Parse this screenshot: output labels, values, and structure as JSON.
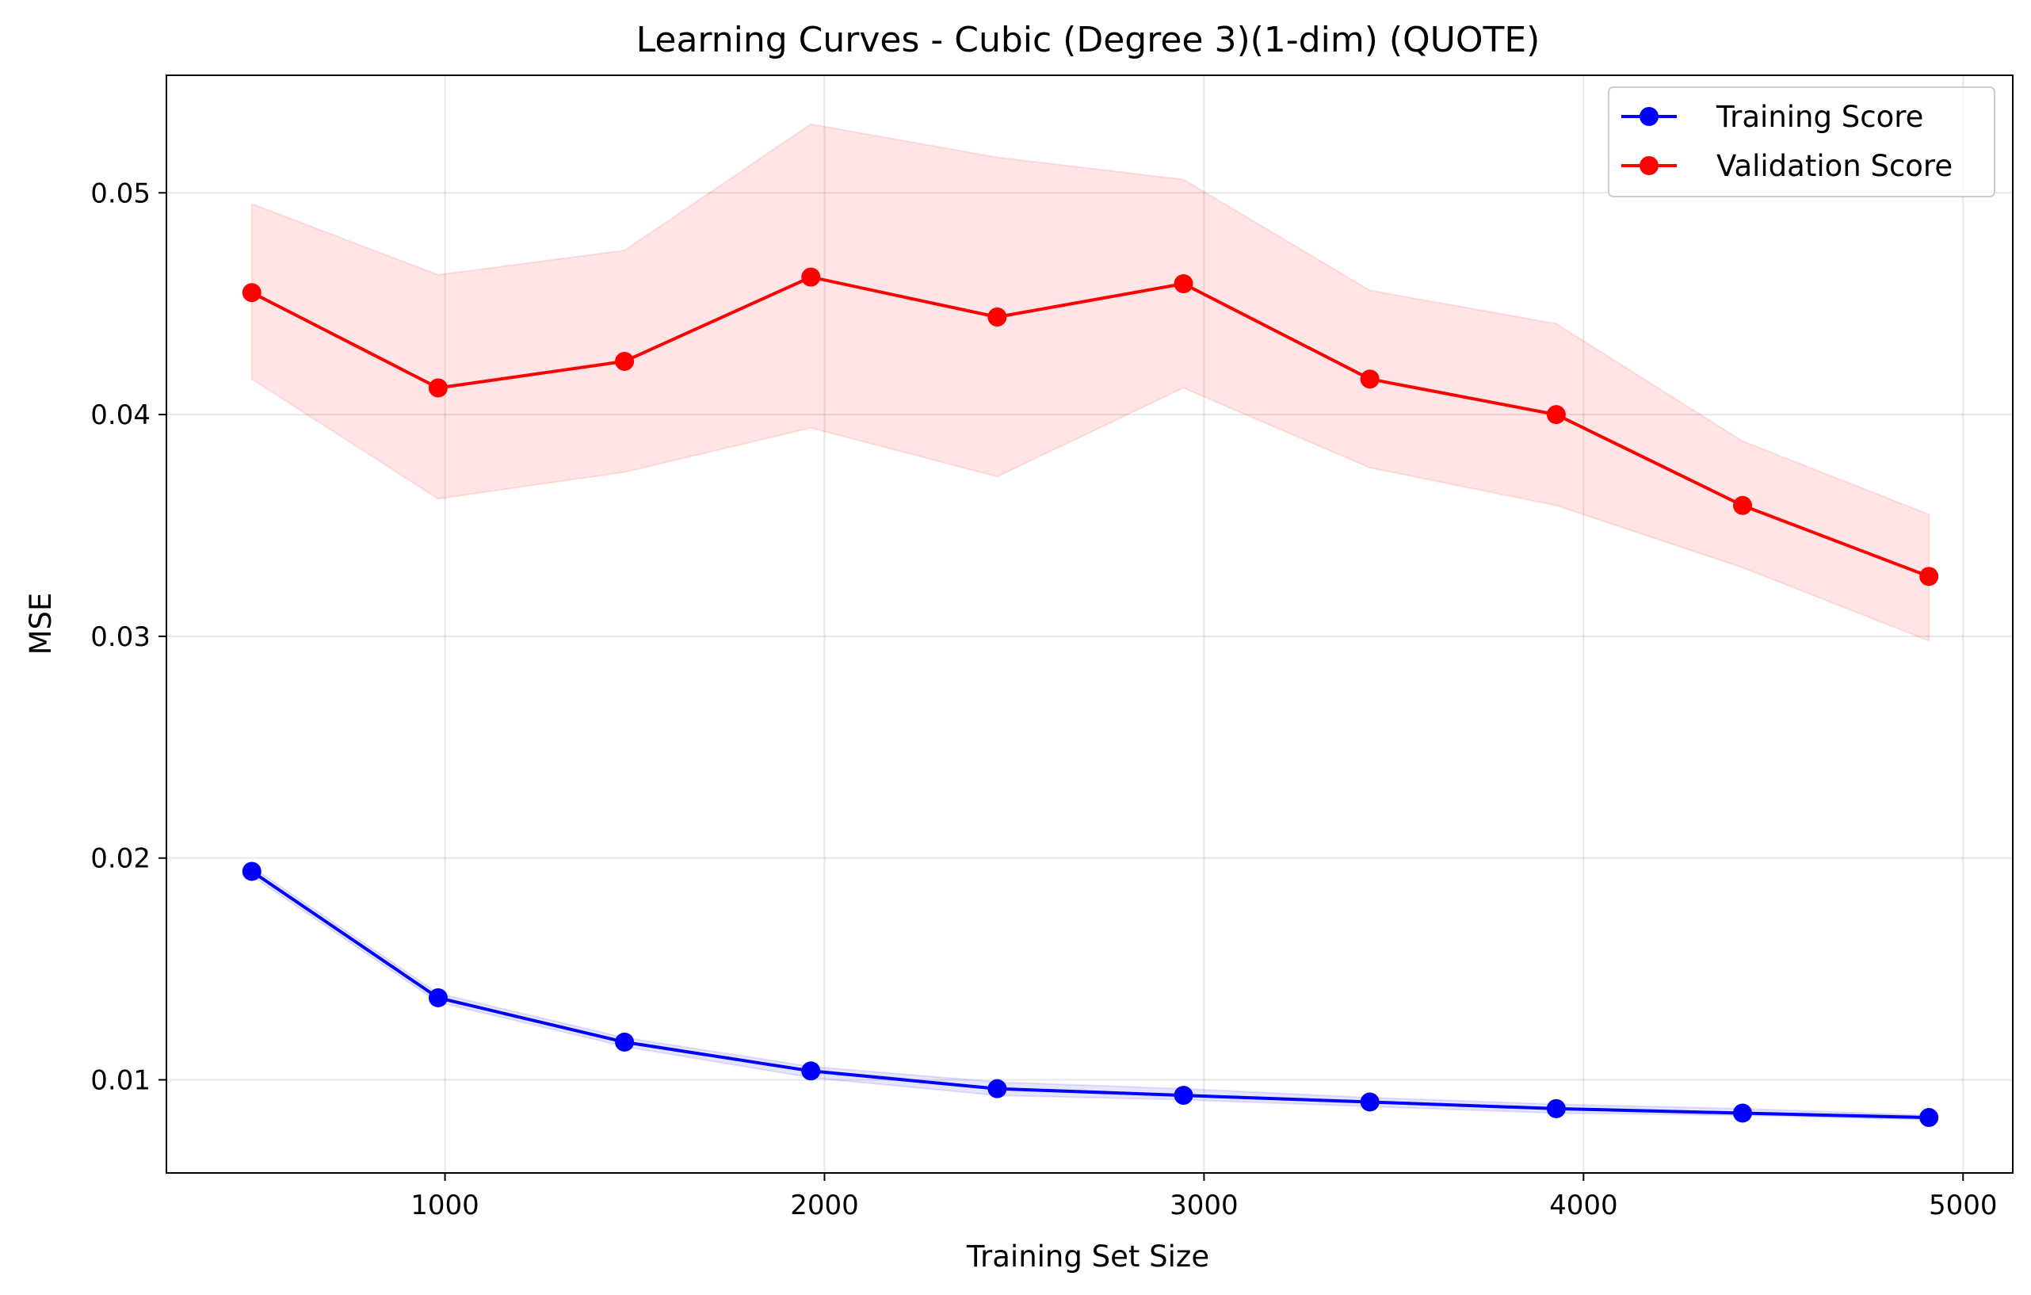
{
  "chart_data": {
    "type": "line",
    "title": "Learning Curves - Cubic (Degree 3)(1-dim) (QUOTE)",
    "xlabel": "Training Set Size",
    "ylabel": "MSE",
    "xlim": [
      266,
      5131
    ],
    "ylim": [
      0.0058,
      0.0553
    ],
    "xticks": [
      1000,
      2000,
      3000,
      4000,
      5000
    ],
    "xtick_labels": [
      "1000",
      "2000",
      "3000",
      "4000",
      "5000"
    ],
    "yticks": [
      0.01,
      0.02,
      0.03,
      0.04,
      0.05
    ],
    "ytick_labels": [
      "0.01",
      "0.02",
      "0.03",
      "0.04",
      "0.05"
    ],
    "grid": true,
    "legend_position": "top-right",
    "x": [
      491,
      982,
      1473,
      1964,
      2455,
      2946,
      3437,
      3928,
      4419,
      4910
    ],
    "series": [
      {
        "name": "Training Score",
        "color": "#0000ff",
        "band_color": "#0000ff",
        "values": [
          0.0194,
          0.0137,
          0.0117,
          0.0104,
          0.0096,
          0.0093,
          0.009,
          0.0087,
          0.0085,
          0.0083
        ],
        "band_lower": [
          0.0192,
          0.0135,
          0.0115,
          0.0101,
          0.0093,
          0.0091,
          0.0088,
          0.0085,
          0.0084,
          0.0082
        ],
        "band_upper": [
          0.0196,
          0.0139,
          0.0119,
          0.0106,
          0.0099,
          0.0096,
          0.0092,
          0.0089,
          0.0087,
          0.0084
        ]
      },
      {
        "name": "Validation Score",
        "color": "#ff0000",
        "band_color": "#ff0000",
        "values": [
          0.0455,
          0.0412,
          0.0424,
          0.0462,
          0.0444,
          0.0459,
          0.0416,
          0.04,
          0.0359,
          0.0327
        ],
        "band_lower": [
          0.0416,
          0.0362,
          0.0374,
          0.0394,
          0.0372,
          0.0412,
          0.0376,
          0.0359,
          0.0331,
          0.0298
        ],
        "band_upper": [
          0.0495,
          0.0463,
          0.0474,
          0.0531,
          0.0516,
          0.0506,
          0.0456,
          0.0441,
          0.0388,
          0.0355
        ]
      }
    ]
  }
}
